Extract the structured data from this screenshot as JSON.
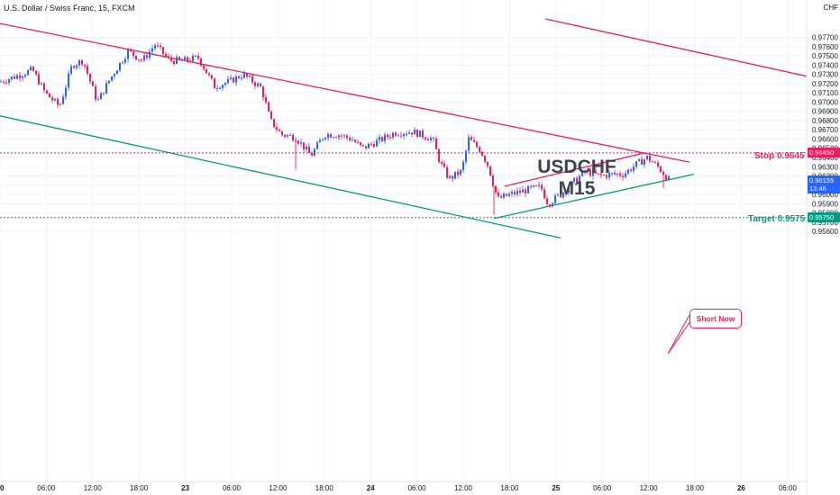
{
  "header": {
    "title": "U.S. Dollar / Swiss Franc, 15, FXCM"
  },
  "axis_currency": "CHF",
  "watermark": {
    "symbol": "USDCHF",
    "timeframe": "M15"
  },
  "levels": {
    "stop": {
      "label": "Stop 0.9645",
      "tag": "0.96450",
      "value": 0.9645,
      "color": "#e91e63"
    },
    "target": {
      "label": "Target 0.9575",
      "tag": "0.95750",
      "value": 0.9575,
      "color": "#089981"
    }
  },
  "last_price": {
    "value": "0.96155",
    "countdown": "13:46",
    "color": "#2962ff"
  },
  "callout": {
    "label": "Short Now"
  },
  "colors": {
    "up": "#2962ff",
    "down": "#e91e63",
    "channel_up": "#e91e63",
    "channel_low": "#089981"
  },
  "chart_data": {
    "type": "candlestick",
    "title": "U.S. Dollar / Swiss Franc, 15, FXCM",
    "ylim": [
      0.9555,
      0.9785
    ],
    "y_ticks": [
      "0.97700",
      "0.97600",
      "0.97500",
      "0.97400",
      "0.97300",
      "0.97200",
      "0.97100",
      "0.97000",
      "0.96900",
      "0.96800",
      "0.96700",
      "0.96600",
      "0.96500",
      "0.96400",
      "0.96300",
      "0.96200",
      "0.96100",
      "0.96000",
      "0.95900",
      "0.95800",
      "0.95700",
      "0.95600"
    ],
    "x_ticks": [
      "0",
      "06:00",
      "12:00",
      "18:00",
      "23",
      "06:00",
      "12:00",
      "18:00",
      "24",
      "06:00",
      "12:00",
      "18:00",
      "25",
      "06:00",
      "12:00",
      "18:00",
      "26",
      "06:00"
    ],
    "anchors": [
      [
        0,
        0.9722
      ],
      [
        18,
        0.9728
      ],
      [
        36,
        0.9735
      ],
      [
        50,
        0.971
      ],
      [
        66,
        0.9695
      ],
      [
        80,
        0.974
      ],
      [
        92,
        0.9745
      ],
      [
        108,
        0.97
      ],
      [
        122,
        0.9725
      ],
      [
        142,
        0.9755
      ],
      [
        158,
        0.9745
      ],
      [
        172,
        0.9762
      ],
      [
        188,
        0.9745
      ],
      [
        205,
        0.9745
      ],
      [
        220,
        0.9748
      ],
      [
        238,
        0.9717
      ],
      [
        254,
        0.9722
      ],
      [
        270,
        0.973
      ],
      [
        290,
        0.9715
      ],
      [
        300,
        0.968
      ],
      [
        312,
        0.9665
      ],
      [
        328,
        0.9662
      ],
      [
        345,
        0.9642
      ],
      [
        360,
        0.9665
      ],
      [
        375,
        0.9665
      ],
      [
        390,
        0.966
      ],
      [
        402,
        0.965
      ],
      [
        420,
        0.9658
      ],
      [
        438,
        0.9667
      ],
      [
        458,
        0.9668
      ],
      [
        480,
        0.966
      ],
      [
        488,
        0.9635
      ],
      [
        498,
        0.9617
      ],
      [
        512,
        0.9625
      ],
      [
        520,
        0.966
      ],
      [
        533,
        0.9648
      ],
      [
        542,
        0.963
      ],
      [
        552,
        0.9595
      ],
      [
        566,
        0.96
      ],
      [
        585,
        0.9605
      ],
      [
        600,
        0.9608
      ],
      [
        608,
        0.959
      ],
      [
        622,
        0.96
      ],
      [
        638,
        0.9615
      ],
      [
        650,
        0.9625
      ],
      [
        665,
        0.962
      ],
      [
        680,
        0.9622
      ],
      [
        692,
        0.9622
      ],
      [
        705,
        0.9632
      ],
      [
        718,
        0.964
      ],
      [
        730,
        0.963
      ],
      [
        742,
        0.9616
      ]
    ],
    "spikes": [
      [
        328,
        0.9627
      ],
      [
        548,
        0.9578
      ],
      [
        736,
        0.9607
      ]
    ],
    "channels": [
      {
        "name": "upper",
        "color": "#e91e63",
        "from": [
          0,
          0.9785
        ],
        "to": [
          765,
          0.9635
        ]
      },
      {
        "name": "upper-parallel",
        "color": "#e91e63",
        "from": [
          605,
          0.979
        ],
        "to": [
          895,
          0.9728
        ]
      },
      {
        "name": "lower",
        "color": "#089981",
        "from": [
          0,
          0.9685
        ],
        "to": [
          622,
          0.9553
        ]
      },
      {
        "name": "wedge-top",
        "color": "#e91e63",
        "from": [
          560,
          0.9609
        ],
        "to": [
          715,
          0.9645
        ]
      },
      {
        "name": "wedge-bottom",
        "color": "#089981",
        "from": [
          548,
          0.9574
        ],
        "to": [
          770,
          0.9622
        ]
      }
    ]
  }
}
